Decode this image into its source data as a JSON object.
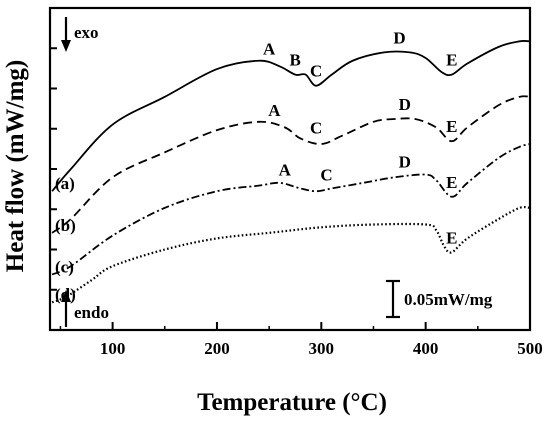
{
  "chart_data": {
    "type": "line",
    "title": "",
    "xlabel": "Temperature (°C)",
    "ylabel": "Heat flow (mW/mg)",
    "xlim": [
      40,
      500
    ],
    "xticks": [
      100,
      200,
      300,
      400,
      500
    ],
    "y_tick_labels_shown": false,
    "grid": false,
    "legend": "none (curves labeled inline (a)-(d))",
    "direction_labels": {
      "top": "exo",
      "bottom": "endo"
    },
    "scale_bar": {
      "label": "0.05mW/mg",
      "value": 0.05
    },
    "series": [
      {
        "name": "(a)",
        "line_style": "solid",
        "x": [
          42,
          60,
          100,
          150,
          200,
          240,
          260,
          275,
          285,
          295,
          310,
          330,
          360,
          385,
          400,
          415,
          425,
          440,
          470,
          490,
          500
        ],
        "y": [
          0.03,
          0.07,
          0.15,
          0.2,
          0.25,
          0.265,
          0.255,
          0.24,
          0.24,
          0.22,
          0.24,
          0.265,
          0.28,
          0.28,
          0.27,
          0.245,
          0.24,
          0.26,
          0.29,
          0.3,
          0.3
        ],
        "peaks": [
          {
            "label": "A",
            "x": 250
          },
          {
            "label": "B",
            "x": 275
          },
          {
            "label": "C",
            "x": 295
          },
          {
            "label": "D",
            "x": 375
          },
          {
            "label": "E",
            "x": 425
          }
        ]
      },
      {
        "name": "(b)",
        "line_style": "dashed",
        "x": [
          42,
          60,
          100,
          150,
          200,
          240,
          265,
          280,
          300,
          320,
          350,
          370,
          390,
          410,
          425,
          440,
          470,
          490,
          500
        ],
        "y": [
          -0.045,
          -0.02,
          0.055,
          0.1,
          0.14,
          0.155,
          0.145,
          0.125,
          0.115,
          0.13,
          0.155,
          0.16,
          0.16,
          0.145,
          0.12,
          0.145,
          0.185,
          0.2,
          0.2
        ],
        "peaks": [
          {
            "label": "A",
            "x": 255
          },
          {
            "label": "C",
            "x": 295
          },
          {
            "label": "D",
            "x": 380
          },
          {
            "label": "E",
            "x": 425
          }
        ]
      },
      {
        "name": "(c)",
        "line_style": "dash-dot",
        "x": [
          42,
          60,
          100,
          150,
          200,
          240,
          260,
          280,
          295,
          310,
          340,
          370,
          400,
          410,
          425,
          440,
          470,
          490,
          500
        ],
        "y": [
          -0.12,
          -0.105,
          -0.05,
          0.0,
          0.03,
          0.04,
          0.045,
          0.035,
          0.03,
          0.035,
          0.045,
          0.055,
          0.06,
          0.05,
          0.02,
          0.045,
          0.09,
          0.11,
          0.115
        ],
        "peaks": [
          {
            "label": "A",
            "x": 265
          },
          {
            "label": "C",
            "x": 305
          },
          {
            "label": "D",
            "x": 380
          },
          {
            "label": "E",
            "x": 425
          }
        ]
      },
      {
        "name": "(d)",
        "line_style": "dotted",
        "x": [
          42,
          50,
          60,
          80,
          100,
          150,
          200,
          250,
          300,
          350,
          400,
          410,
          418,
          425,
          440,
          470,
          490,
          500
        ],
        "y": [
          -0.17,
          -0.165,
          -0.155,
          -0.13,
          -0.105,
          -0.075,
          -0.055,
          -0.045,
          -0.035,
          -0.03,
          -0.03,
          -0.04,
          -0.07,
          -0.08,
          -0.055,
          -0.02,
          0.0,
          0.0
        ],
        "peaks": [
          {
            "label": "E",
            "x": 425
          }
        ]
      }
    ]
  }
}
